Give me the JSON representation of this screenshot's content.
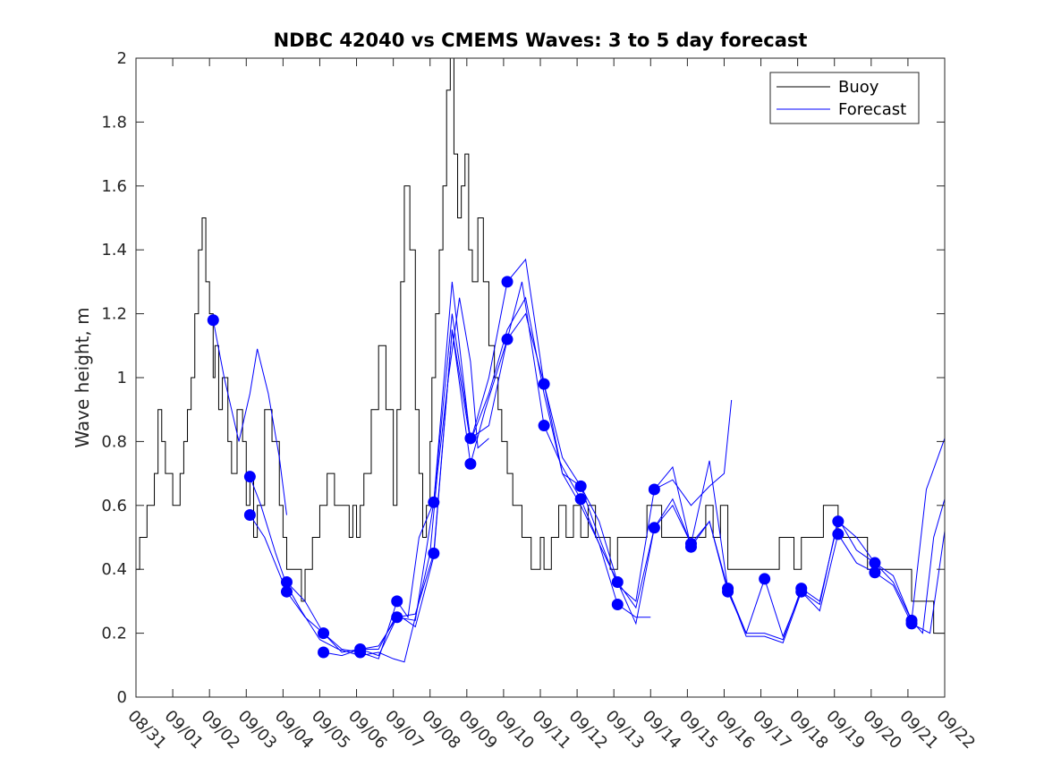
{
  "chart_data": {
    "type": "line",
    "title": "NDBC 42040 vs CMEMS Waves: 3 to 5 day forecast",
    "xlabel": "",
    "ylabel": "Wave height, m",
    "ylim": [
      0,
      2
    ],
    "xlim": [
      0,
      22
    ],
    "grid": false,
    "legend_position": "top-right",
    "yticks": [
      0,
      0.2,
      0.4,
      0.6,
      0.8,
      1,
      1.2,
      1.4,
      1.6,
      1.8,
      2
    ],
    "ytick_labels": [
      "0",
      "0.2",
      "0.4",
      "0.6",
      "0.8",
      "1",
      "1.2",
      "1.4",
      "1.6",
      "1.8",
      "2"
    ],
    "xtick_labels": [
      "08/31",
      "09/01",
      "09/02",
      "09/03",
      "09/04",
      "09/05",
      "09/06",
      "09/07",
      "09/08",
      "09/09",
      "09/10",
      "09/11",
      "09/12",
      "09/13",
      "09/14",
      "09/15",
      "09/16",
      "09/17",
      "09/18",
      "09/19",
      "09/20",
      "09/21",
      "09/22"
    ],
    "legend": [
      {
        "label": "Buoy",
        "color": "#000000"
      },
      {
        "label": "Forecast",
        "color": "#0000ff"
      }
    ],
    "series": [
      {
        "name": "Buoy",
        "color": "#000000",
        "x": [
          0.0,
          0.1,
          0.3,
          0.5,
          0.6,
          0.7,
          0.8,
          0.9,
          1.0,
          1.2,
          1.3,
          1.4,
          1.5,
          1.6,
          1.7,
          1.8,
          1.9,
          2.0,
          2.1,
          2.15,
          2.25,
          2.35,
          2.5,
          2.6,
          2.75,
          2.9,
          3.0,
          3.1,
          3.2,
          3.3,
          3.5,
          3.7,
          3.9,
          4.0,
          4.1,
          4.2,
          4.3,
          4.4,
          4.5,
          4.6,
          4.8,
          5.0,
          5.2,
          5.4,
          5.55,
          5.7,
          5.8,
          5.9,
          6.0,
          6.1,
          6.2,
          6.4,
          6.6,
          6.8,
          7.0,
          7.1,
          7.2,
          7.3,
          7.45,
          7.6,
          7.7,
          7.8,
          7.9,
          8.0,
          8.05,
          8.15,
          8.25,
          8.35,
          8.45,
          8.55,
          8.65,
          8.75,
          8.85,
          8.95,
          9.05,
          9.15,
          9.3,
          9.45,
          9.6,
          9.75,
          9.85,
          9.95,
          10.1,
          10.25,
          10.35,
          10.5,
          10.6,
          10.75,
          10.9,
          11.0,
          11.1,
          11.3,
          11.5,
          11.7,
          11.9,
          12.1,
          12.3,
          12.5,
          12.7,
          12.9,
          13.1,
          13.3,
          13.5,
          13.7,
          13.9,
          14.1,
          14.3,
          14.5,
          14.7,
          14.9,
          15.1,
          15.3,
          15.5,
          15.7,
          15.9,
          16.1,
          16.3,
          16.5,
          16.7,
          16.9,
          17.1,
          17.3,
          17.5,
          17.7,
          17.9,
          18.1,
          18.3,
          18.5,
          18.7,
          18.9,
          19.1,
          19.3,
          19.5,
          19.7,
          19.9,
          20.1,
          20.3,
          20.5,
          20.7,
          20.9,
          21.1,
          21.3,
          21.5,
          21.7,
          22.0
        ],
        "y": [
          0.4,
          0.5,
          0.6,
          0.7,
          0.9,
          0.8,
          0.7,
          0.7,
          0.6,
          0.7,
          0.8,
          0.9,
          1.0,
          1.2,
          1.4,
          1.5,
          1.3,
          1.2,
          1.0,
          1.1,
          0.9,
          1.0,
          0.8,
          0.7,
          0.9,
          0.8,
          0.6,
          0.7,
          0.5,
          0.6,
          0.9,
          0.8,
          0.6,
          0.5,
          0.4,
          0.4,
          0.4,
          0.4,
          0.3,
          0.4,
          0.5,
          0.6,
          0.7,
          0.6,
          0.6,
          0.6,
          0.5,
          0.6,
          0.5,
          0.6,
          0.7,
          0.9,
          1.1,
          0.9,
          0.6,
          0.9,
          1.3,
          1.6,
          1.4,
          0.9,
          0.7,
          0.5,
          0.6,
          0.8,
          1.0,
          1.2,
          1.4,
          1.6,
          1.9,
          2.0,
          1.7,
          1.5,
          1.6,
          1.7,
          1.4,
          1.3,
          1.5,
          1.3,
          1.1,
          1.0,
          0.9,
          0.8,
          0.7,
          0.6,
          0.6,
          0.5,
          0.5,
          0.4,
          0.4,
          0.5,
          0.4,
          0.5,
          0.6,
          0.5,
          0.6,
          0.5,
          0.6,
          0.5,
          0.5,
          0.4,
          0.5,
          0.5,
          0.5,
          0.5,
          0.6,
          0.6,
          0.5,
          0.5,
          0.5,
          0.5,
          0.5,
          0.5,
          0.6,
          0.5,
          0.6,
          0.4,
          0.4,
          0.4,
          0.4,
          0.4,
          0.4,
          0.4,
          0.5,
          0.5,
          0.4,
          0.5,
          0.5,
          0.5,
          0.6,
          0.6,
          0.5,
          0.5,
          0.5,
          0.5,
          0.4,
          0.4,
          0.4,
          0.4,
          0.4,
          0.4,
          0.3,
          0.3,
          0.3,
          0.2,
          0.2
        ]
      },
      {
        "name": "Forecast",
        "color": "#0000ff",
        "runs": [
          {
            "x": [
              2.1,
              2.4,
              2.8,
              3.1,
              3.3,
              3.6,
              3.9,
              4.1
            ],
            "y": [
              1.18,
              1.0,
              0.8,
              0.95,
              1.09,
              0.95,
              0.75,
              0.57
            ]
          },
          {
            "x": [
              3.1,
              3.4,
              3.8,
              4.1,
              4.5,
              5.0,
              5.5,
              6.1,
              6.6,
              7.0,
              7.3,
              7.6,
              8.0,
              8.2,
              8.5,
              8.8,
              9.1,
              9.3,
              9.6
            ],
            "y": [
              0.69,
              0.6,
              0.45,
              0.35,
              0.27,
              0.18,
              0.15,
              0.13,
              0.14,
              0.12,
              0.11,
              0.25,
              0.45,
              0.7,
              1.0,
              1.25,
              1.05,
              0.78,
              0.81
            ]
          },
          {
            "x": [
              3.1,
              3.5,
              4.1,
              4.6,
              5.1,
              5.6,
              6.1,
              6.6,
              7.1,
              7.6,
              8.1,
              8.6,
              9.1,
              9.5,
              10.1,
              10.5,
              11.1,
              11.6,
              12.1,
              12.6,
              13.1,
              13.6,
              14.0
            ],
            "y": [
              0.57,
              0.5,
              0.33,
              0.25,
              0.2,
              0.14,
              0.15,
              0.13,
              0.25,
              0.26,
              0.45,
              1.15,
              0.73,
              0.9,
              1.12,
              1.3,
              0.85,
              0.72,
              0.62,
              0.48,
              0.29,
              0.25,
              0.25
            ]
          },
          {
            "x": [
              4.1,
              4.6,
              5.1,
              5.6,
              6.1,
              6.6,
              7.1,
              7.4,
              7.7,
              8.1,
              8.6,
              9.1,
              9.6,
              10.1,
              10.6,
              11.1,
              11.6,
              12.1,
              12.6,
              13.1,
              13.6,
              14.1,
              14.6,
              15.1,
              15.6,
              16.1,
              16.6,
              17.1,
              17.6,
              18.1,
              18.6,
              19.1,
              19.6,
              20.1,
              20.6,
              21.1,
              21.4,
              21.7,
              22.0
            ],
            "y": [
              0.36,
              0.3,
              0.2,
              0.15,
              0.14,
              0.12,
              0.3,
              0.25,
              0.5,
              0.61,
              1.2,
              0.81,
              0.85,
              1.12,
              1.2,
              0.98,
              0.75,
              0.66,
              0.55,
              0.36,
              0.23,
              0.53,
              0.6,
              0.48,
              0.55,
              0.34,
              0.2,
              0.2,
              0.18,
              0.34,
              0.3,
              0.55,
              0.5,
              0.42,
              0.38,
              0.24,
              0.2,
              0.5,
              0.62
            ]
          },
          {
            "x": [
              5.1,
              5.6,
              6.1,
              6.6,
              7.1,
              7.6,
              8.1,
              8.6,
              9.1,
              9.6,
              10.1,
              10.6,
              11.1,
              11.6,
              12.1,
              12.6,
              13.1,
              13.6,
              14.1,
              14.6,
              15.1,
              15.6,
              16.1,
              16.6,
              17.1,
              17.6,
              18.1,
              18.6,
              19.1,
              19.6,
              20.1,
              20.6,
              21.1,
              21.6,
              22.0
            ],
            "y": [
              0.14,
              0.13,
              0.15,
              0.16,
              0.25,
              0.24,
              0.61,
              1.3,
              0.8,
              1.0,
              1.3,
              1.37,
              0.98,
              0.7,
              0.66,
              0.5,
              0.35,
              0.3,
              0.65,
              0.72,
              0.47,
              0.55,
              0.33,
              0.2,
              0.37,
              0.19,
              0.33,
              0.27,
              0.51,
              0.42,
              0.39,
              0.35,
              0.23,
              0.2,
              0.52
            ]
          },
          {
            "x": [
              6.1,
              6.6,
              7.1,
              7.6,
              8.1,
              8.6,
              9.1,
              9.6,
              10.1,
              10.6,
              11.1,
              11.6,
              12.1,
              12.6,
              13.1,
              13.6,
              14.1,
              14.6,
              15.1,
              15.6,
              16.1,
              16.6,
              17.1,
              17.6,
              18.1,
              18.6,
              19.1,
              19.6,
              20.1,
              20.6,
              21.1,
              21.5,
              22.0
            ],
            "y": [
              0.15,
              0.15,
              0.26,
              0.22,
              0.44,
              1.15,
              0.8,
              0.95,
              1.15,
              1.25,
              0.95,
              0.7,
              0.6,
              0.48,
              0.36,
              0.28,
              0.53,
              0.62,
              0.48,
              0.74,
              0.34,
              0.19,
              0.19,
              0.17,
              0.33,
              0.29,
              0.56,
              0.46,
              0.42,
              0.36,
              0.24,
              0.65,
              0.81
            ]
          },
          {
            "x": [
              14.1,
              14.6,
              15.1,
              15.6,
              16.0,
              16.2
            ],
            "y": [
              0.65,
              0.68,
              0.6,
              0.66,
              0.7,
              0.93
            ]
          }
        ],
        "markers": {
          "x": [
            2.1,
            3.1,
            3.1,
            4.1,
            4.1,
            5.1,
            5.1,
            6.1,
            6.1,
            7.1,
            7.1,
            8.1,
            8.1,
            9.1,
            9.1,
            10.1,
            10.1,
            11.1,
            11.1,
            12.1,
            12.1,
            13.1,
            13.1,
            14.1,
            14.1,
            15.1,
            15.1,
            16.1,
            16.1,
            17.1,
            18.1,
            18.1,
            19.1,
            19.1,
            20.1,
            20.1,
            21.1,
            21.1
          ],
          "y": [
            1.18,
            0.69,
            0.57,
            0.36,
            0.33,
            0.2,
            0.14,
            0.15,
            0.14,
            0.3,
            0.25,
            0.61,
            0.45,
            0.81,
            0.73,
            1.3,
            1.12,
            0.98,
            0.85,
            0.66,
            0.62,
            0.36,
            0.29,
            0.65,
            0.53,
            0.48,
            0.47,
            0.34,
            0.33,
            0.37,
            0.34,
            0.33,
            0.55,
            0.51,
            0.42,
            0.39,
            0.24,
            0.23
          ]
        }
      }
    ]
  }
}
